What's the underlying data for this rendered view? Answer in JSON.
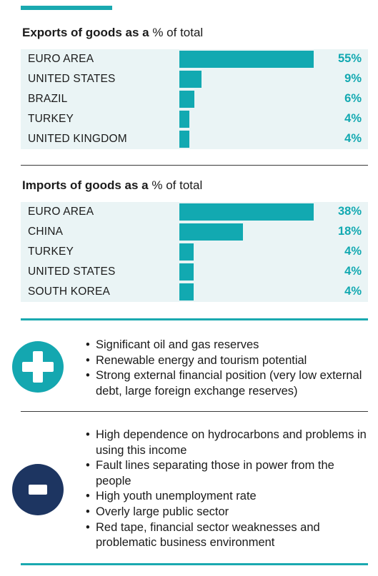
{
  "chart_data": [
    {
      "type": "bar",
      "title_bold": "Exports of goods as a",
      "title_rest": "% of total",
      "categories": [
        "EURO AREA",
        "UNITED STATES",
        "BRAZIL",
        "TURKEY",
        "UNITED KINGDOM"
      ],
      "values": [
        55,
        9,
        6,
        4,
        4
      ],
      "value_labels": [
        "55%",
        "9%",
        "6%",
        "4%",
        "4%"
      ],
      "xlim": [
        0,
        55
      ]
    },
    {
      "type": "bar",
      "title_bold": "Imports of goods as a",
      "title_rest": "% of total",
      "categories": [
        "EURO AREA",
        "CHINA",
        "TURKEY",
        "UNITED STATES",
        "SOUTH KOREA"
      ],
      "values": [
        38,
        18,
        4,
        4,
        4
      ],
      "value_labels": [
        "38%",
        "18%",
        "4%",
        "4%",
        "4%"
      ],
      "xlim": [
        0,
        38
      ]
    }
  ],
  "strengths": {
    "icon": "plus-icon",
    "items": [
      "Significant oil and gas reserves",
      "Renewable energy and tourism potential",
      "Strong external financial position (very low external debt, large foreign exchange reserves)"
    ]
  },
  "weaknesses": {
    "icon": "minus-icon",
    "items": [
      "High dependence on hydrocarbons and problems in using this income",
      "Fault lines separating those in power from the people",
      "High youth unemployment rate",
      "Overly large public sector",
      "Red tape, financial sector weaknesses and problematic business environment"
    ]
  },
  "colors": {
    "accent": "#1aa9b0",
    "bar": "#12a9b1",
    "table_bg": "#eaf4f5",
    "minus_badge": "#1d3561"
  }
}
